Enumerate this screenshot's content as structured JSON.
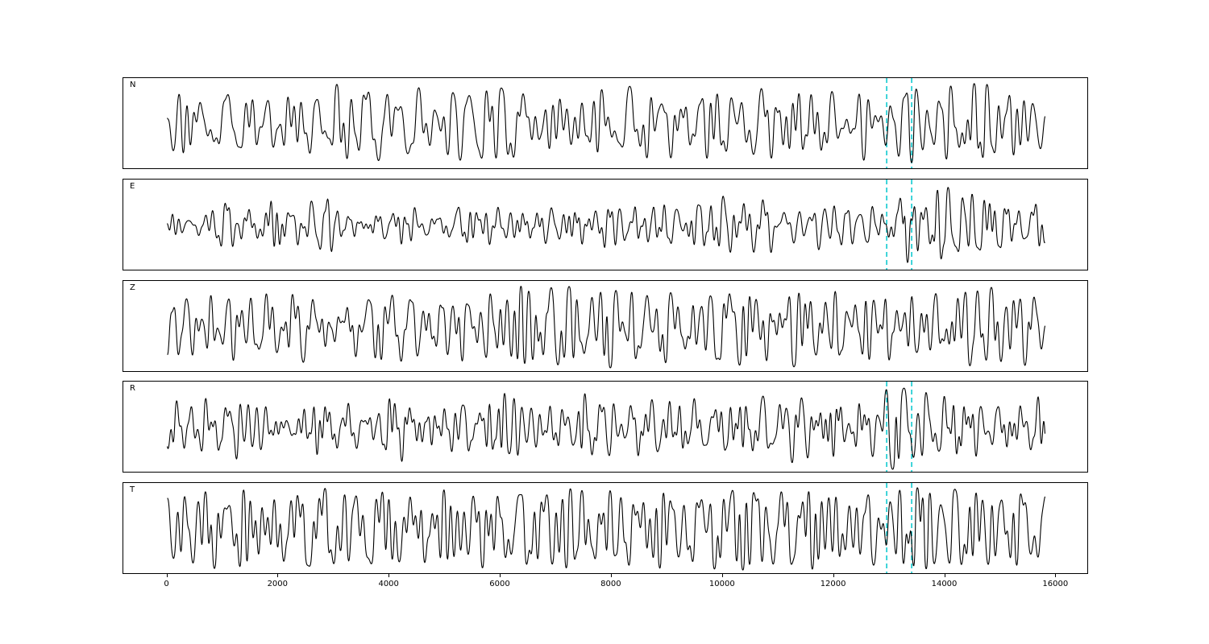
{
  "figure": {
    "background": "#ffffff"
  },
  "chart_data": {
    "type": "line",
    "title": "",
    "xlabel": "",
    "ylabel": "",
    "grid": false,
    "legend": "none",
    "trace_color": "#000000",
    "vline_color": "#00c5cd",
    "vline_style": "dashed",
    "xlim": [
      -790,
      16590
    ],
    "x_data_range": [
      0,
      15800
    ],
    "x_ticks": [
      0,
      2000,
      4000,
      6000,
      8000,
      10000,
      12000,
      14000,
      16000
    ],
    "x_tick_labels": [
      "0",
      "2000",
      "4000",
      "6000",
      "8000",
      "10000",
      "12000",
      "14000",
      "16000"
    ],
    "pick_window": [
      12950,
      13400
    ],
    "panels": [
      {
        "label": "N",
        "seed": 101,
        "gain": 1.0,
        "period_range": [
          100,
          650
        ],
        "vlines": [
          12950,
          13400
        ],
        "envelope": [
          [
            0,
            0.9
          ],
          [
            1500,
            0.75
          ],
          [
            3000,
            0.95
          ],
          [
            6500,
            1.1
          ],
          [
            7200,
            1.35
          ],
          [
            8000,
            1.0
          ],
          [
            10000,
            1.05
          ],
          [
            11500,
            1.2
          ],
          [
            12800,
            1.15
          ],
          [
            13300,
            1.55
          ],
          [
            14000,
            1.3
          ],
          [
            14800,
            1.55
          ],
          [
            15400,
            1.1
          ],
          [
            15800,
            0.9
          ]
        ]
      },
      {
        "label": "E",
        "seed": 202,
        "gain": 0.75,
        "period_range": [
          80,
          420
        ],
        "vlines": [
          12950,
          13400
        ],
        "envelope": [
          [
            0,
            0.8
          ],
          [
            2000,
            0.85
          ],
          [
            4000,
            0.75
          ],
          [
            6500,
            1.0
          ],
          [
            7000,
            0.9
          ],
          [
            9000,
            0.85
          ],
          [
            11000,
            0.9
          ],
          [
            12800,
            0.9
          ],
          [
            13100,
            1.1
          ],
          [
            13280,
            3.2
          ],
          [
            13450,
            1.4
          ],
          [
            14000,
            1.1
          ],
          [
            14700,
            1.3
          ],
          [
            15300,
            1.0
          ],
          [
            15800,
            0.85
          ]
        ]
      },
      {
        "label": "Z",
        "seed": 303,
        "gain": 0.9,
        "period_range": [
          90,
          520
        ],
        "vlines": [],
        "envelope": [
          [
            0,
            0.9
          ],
          [
            2000,
            0.85
          ],
          [
            4000,
            1.0
          ],
          [
            6300,
            1.15
          ],
          [
            6650,
            1.9
          ],
          [
            7000,
            1.4
          ],
          [
            7600,
            1.1
          ],
          [
            8000,
            1.5
          ],
          [
            8400,
            1.0
          ],
          [
            10500,
            1.1
          ],
          [
            11400,
            1.4
          ],
          [
            12000,
            1.2
          ],
          [
            13500,
            1.0
          ],
          [
            14300,
            1.2
          ],
          [
            15800,
            0.9
          ]
        ]
      },
      {
        "label": "R",
        "seed": 404,
        "gain": 0.78,
        "period_range": [
          80,
          430
        ],
        "vlines": [
          12950,
          13400
        ],
        "envelope": [
          [
            0,
            0.85
          ],
          [
            2500,
            0.8
          ],
          [
            5000,
            0.85
          ],
          [
            7000,
            0.95
          ],
          [
            9000,
            0.9
          ],
          [
            11000,
            0.95
          ],
          [
            12800,
            0.95
          ],
          [
            13150,
            3.0
          ],
          [
            13400,
            1.5
          ],
          [
            13800,
            1.1
          ],
          [
            14500,
            1.25
          ],
          [
            15100,
            1.1
          ],
          [
            15800,
            0.85
          ]
        ]
      },
      {
        "label": "T",
        "seed": 505,
        "gain": 1.0,
        "period_range": [
          95,
          600
        ],
        "vlines": [
          12950,
          13400
        ],
        "envelope": [
          [
            0,
            0.9
          ],
          [
            1800,
            1.0
          ],
          [
            3500,
            1.05
          ],
          [
            5500,
            0.9
          ],
          [
            6400,
            1.25
          ],
          [
            7100,
            1.4
          ],
          [
            7800,
            1.0
          ],
          [
            9500,
            1.05
          ],
          [
            11000,
            1.15
          ],
          [
            12500,
            1.2
          ],
          [
            13400,
            1.1
          ],
          [
            14000,
            1.35
          ],
          [
            14700,
            1.5
          ],
          [
            15200,
            1.1
          ],
          [
            15800,
            0.95
          ]
        ]
      }
    ]
  }
}
